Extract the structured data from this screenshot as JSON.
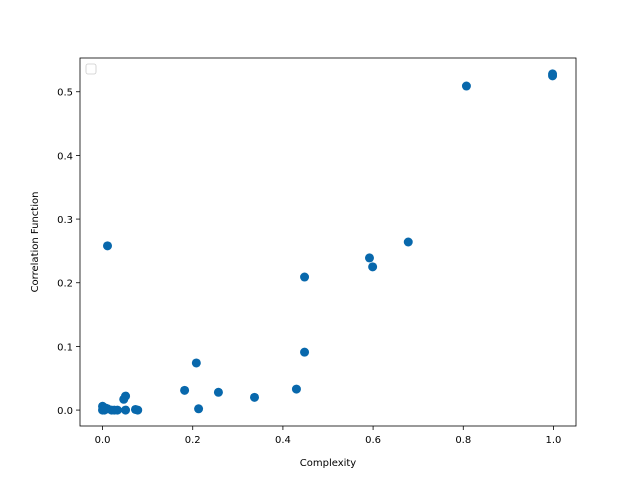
{
  "chart_data": {
    "type": "scatter",
    "xlabel": "Complexity",
    "ylabel": "Correlation Function",
    "x": [
      0.998,
      0.998,
      0.807,
      0.678,
      0.592,
      0.599,
      0.448,
      0.011,
      0.208,
      0.448,
      0.182,
      0.257,
      0.43,
      0.337,
      0.213,
      0.051,
      0.047,
      0.051,
      0.073,
      0.078,
      0.0,
      0.0,
      0.004,
      0.011,
      0.02,
      0.033,
      0.026,
      0.007
    ],
    "values": [
      0.528,
      0.525,
      0.509,
      0.264,
      0.239,
      0.225,
      0.209,
      0.258,
      0.074,
      0.091,
      0.031,
      0.028,
      0.033,
      0.02,
      0.002,
      0.022,
      0.017,
      0.0,
      0.001,
      0.0,
      0.006,
      0.0,
      0.0,
      0.002,
      0.0,
      0.0,
      0.0,
      0.003
    ],
    "color": "#0868ac",
    "xlim": [
      -0.05,
      1.05
    ],
    "ylim": [
      -0.025,
      0.553
    ],
    "xticks": [
      {
        "value": 0,
        "label": "0.0"
      },
      0.2,
      0.4,
      0.6,
      0.8,
      {
        "value": 1,
        "label": "1.0"
      }
    ],
    "yticks": [
      {
        "value": 0,
        "label": "0.0"
      },
      0.1,
      0.2,
      0.3,
      0.4,
      0.5
    ],
    "legend": "upper left"
  }
}
